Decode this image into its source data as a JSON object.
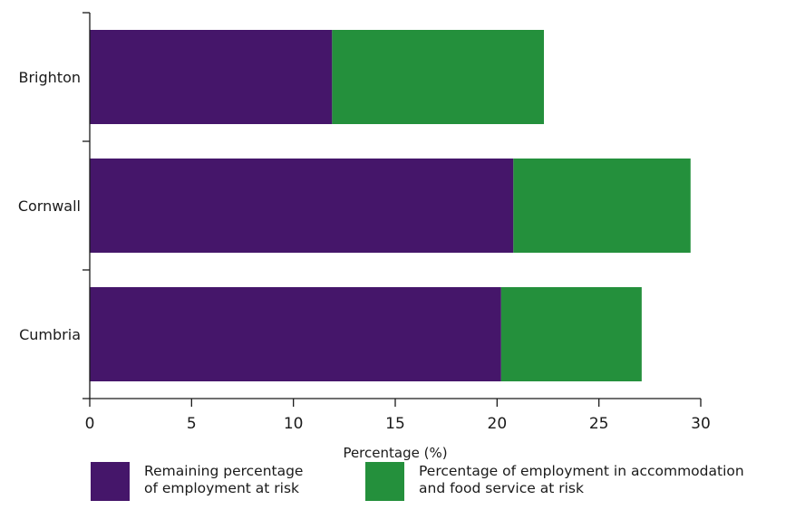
{
  "chart_data": {
    "type": "bar",
    "orientation": "horizontal",
    "stacked": true,
    "categories": [
      "Brighton",
      "Cornwall",
      "Cumbria"
    ],
    "series": [
      {
        "name": "Remaining percentage\nof employment at risk",
        "color": "#45166a",
        "values": [
          11.9,
          20.8,
          20.2
        ]
      },
      {
        "name": "Percentage of employment in accommodation\nand food service at risk",
        "color": "#24903c",
        "values": [
          10.4,
          8.7,
          6.9
        ]
      }
    ],
    "xlabel": "Percentage (%)",
    "ylabel": "",
    "xlim": [
      0,
      30
    ],
    "xticks": [
      0,
      5,
      10,
      15,
      20,
      25,
      30
    ],
    "grid": false,
    "legend_position": "bottom"
  }
}
